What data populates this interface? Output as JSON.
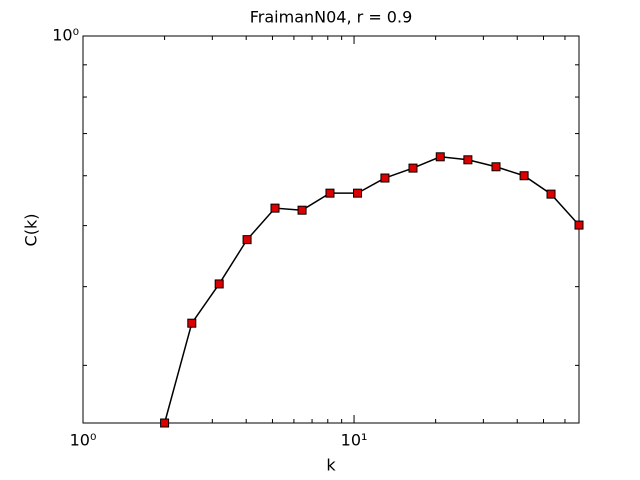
{
  "chart_data": {
    "type": "line",
    "title": "FraimanN04, r = 0.9",
    "x_label": "k",
    "y_label": "C(k)",
    "x": [
      2,
      2.52,
      3.18,
      4.03,
      5.11,
      6.43,
      8.15,
      10.3,
      13.0,
      16.5,
      20.8,
      26.3,
      33.4,
      42.4,
      53.3,
      67.6
    ],
    "series": [
      {
        "color": "#000000",
        "marker_color": "#dd0000",
        "values": [
          0.243,
          0.35,
          0.404,
          0.475,
          0.533,
          0.529,
          0.563,
          0.563,
          0.595,
          0.617,
          0.643,
          0.636,
          0.62,
          0.6,
          0.561,
          0.501
        ]
      }
    ],
    "xlim": [
      1,
      67.6
    ],
    "ylim": [
      0.243,
      1
    ],
    "log_x": true,
    "log_y": true,
    "xticks": [
      {
        "value": 1,
        "label": "10⁰"
      },
      {
        "value": 10,
        "label": "10¹"
      }
    ],
    "yticks": [
      {
        "value": 1,
        "label": "10⁰"
      }
    ],
    "x_minor_ticks": [
      2,
      3,
      4,
      5,
      6,
      7,
      8,
      9,
      20,
      30,
      40,
      50,
      60
    ],
    "y_minor_ticks": [
      0.3,
      0.4,
      0.5,
      0.6,
      0.7,
      0.8,
      0.9
    ]
  }
}
